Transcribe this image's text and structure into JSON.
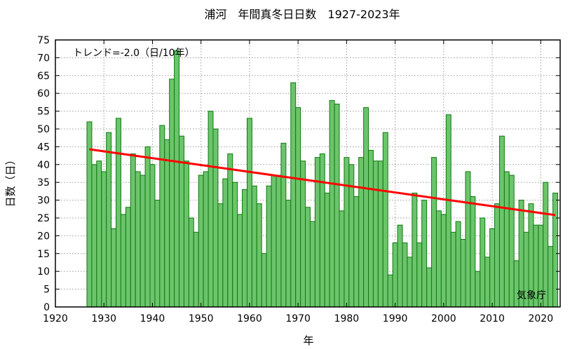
{
  "chart_data": {
    "type": "bar",
    "title": "浦河　年間真冬日日数　1927-2023年",
    "xlabel": "年",
    "ylabel": "日数（日）",
    "trend_label": "トレンド=-2.0（日/10年）",
    "source_label": "気象庁",
    "xlim": [
      1920,
      2024
    ],
    "ylim": [
      0,
      75
    ],
    "x_ticks": [
      1920,
      1930,
      1940,
      1950,
      1960,
      1970,
      1980,
      1990,
      2000,
      2010,
      2020
    ],
    "y_ticks": [
      0,
      5,
      10,
      15,
      20,
      25,
      30,
      35,
      40,
      45,
      50,
      55,
      60,
      65,
      70,
      75
    ],
    "grid": true,
    "years": [
      1927,
      1928,
      1929,
      1930,
      1931,
      1932,
      1933,
      1934,
      1935,
      1936,
      1937,
      1938,
      1939,
      1940,
      1941,
      1942,
      1943,
      1944,
      1945,
      1946,
      1947,
      1948,
      1949,
      1950,
      1951,
      1952,
      1953,
      1954,
      1955,
      1956,
      1957,
      1958,
      1959,
      1960,
      1961,
      1962,
      1963,
      1964,
      1965,
      1966,
      1967,
      1968,
      1969,
      1970,
      1971,
      1972,
      1973,
      1974,
      1975,
      1976,
      1977,
      1978,
      1979,
      1980,
      1981,
      1982,
      1983,
      1984,
      1985,
      1986,
      1987,
      1988,
      1989,
      1990,
      1991,
      1992,
      1993,
      1994,
      1995,
      1996,
      1997,
      1998,
      1999,
      2000,
      2001,
      2002,
      2003,
      2004,
      2005,
      2006,
      2007,
      2008,
      2009,
      2010,
      2011,
      2012,
      2013,
      2014,
      2015,
      2016,
      2017,
      2018,
      2019,
      2020,
      2021,
      2022,
      2023
    ],
    "values": [
      52,
      40,
      41,
      38,
      49,
      22,
      53,
      26,
      28,
      43,
      38,
      37,
      45,
      40,
      30,
      51,
      47,
      64,
      72,
      48,
      41,
      25,
      21,
      37,
      38,
      55,
      50,
      29,
      36,
      43,
      35,
      26,
      33,
      53,
      34,
      29,
      15,
      34,
      37,
      37,
      46,
      30,
      63,
      56,
      41,
      28,
      24,
      42,
      43,
      32,
      58,
      57,
      27,
      42,
      40,
      31,
      42,
      56,
      44,
      41,
      41,
      49,
      9,
      18,
      23,
      18,
      14,
      32,
      18,
      30,
      11,
      42,
      27,
      26,
      54,
      21,
      24,
      19,
      38,
      31,
      10,
      25,
      14,
      22,
      29,
      48,
      38,
      37,
      13,
      30,
      21,
      29,
      23,
      23,
      35,
      17,
      32
    ],
    "trend": {
      "start_year": 1927,
      "start_value": 44.3,
      "end_year": 2023,
      "end_value": 25.8
    },
    "colors": {
      "bar_fill": "#6cc46c",
      "bar_stroke": "#0f7a0f",
      "trend": "#ff0000",
      "grid": "#999999"
    }
  }
}
